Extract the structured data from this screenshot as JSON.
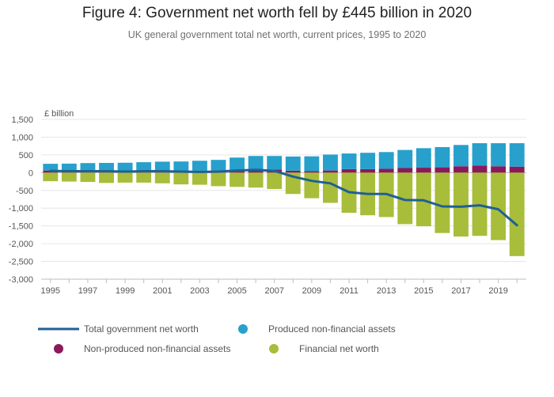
{
  "chart_data": {
    "type": "bar",
    "title": "Figure 4: Government net worth fell by £445 billion in 2020",
    "subtitle": "UK general government total net worth, current prices, 1995 to 2020",
    "ylabel": "£ billion",
    "xlabel": "",
    "ylim": [
      -3000,
      1500
    ],
    "yticks": [
      1500,
      1000,
      500,
      0,
      -500,
      -1000,
      -1500,
      -2000,
      -2500,
      -3000
    ],
    "ytick_labels": [
      "1,500",
      "1,000",
      "500",
      "0",
      "-500",
      "-1,000",
      "-1,500",
      "-2,000",
      "-2,500",
      "-3,000"
    ],
    "xtick_labels": [
      "1995",
      "1997",
      "1999",
      "2001",
      "2003",
      "2005",
      "2007",
      "2009",
      "2011",
      "2013",
      "2015",
      "2017",
      "2019"
    ],
    "stacked": true,
    "grid": true,
    "legend_position": "bottom",
    "categories": [
      "1995",
      "1996",
      "1997",
      "1998",
      "1999",
      "2000",
      "2001",
      "2002",
      "2003",
      "2004",
      "2005",
      "2006",
      "2007",
      "2008",
      "2009",
      "2010",
      "2011",
      "2012",
      "2013",
      "2014",
      "2015",
      "2016",
      "2017",
      "2018",
      "2019",
      "2020"
    ],
    "series": [
      {
        "name": "Non-produced non-financial assets",
        "kind": "bar",
        "color": "#8b1a5b",
        "values": [
          60,
          55,
          60,
          55,
          50,
          55,
          60,
          55,
          55,
          60,
          65,
          80,
          90,
          55,
          40,
          60,
          100,
          100,
          110,
          130,
          140,
          150,
          180,
          200,
          180,
          170
        ]
      },
      {
        "name": "Produced non-financial assets",
        "kind": "bar",
        "color": "#27a0cc",
        "values": [
          190,
          200,
          210,
          220,
          230,
          240,
          250,
          260,
          280,
          300,
          360,
          390,
          380,
          400,
          420,
          450,
          440,
          460,
          470,
          510,
          550,
          570,
          600,
          630,
          650,
          660
        ]
      },
      {
        "name": "Financial net worth",
        "kind": "bar",
        "color": "#a8bd3a",
        "values": [
          -240,
          -250,
          -260,
          -290,
          -280,
          -280,
          -300,
          -330,
          -340,
          -380,
          -400,
          -420,
          -460,
          -600,
          -720,
          -850,
          -1130,
          -1200,
          -1250,
          -1450,
          -1510,
          -1700,
          -1800,
          -1780,
          -1900,
          -2350
        ]
      },
      {
        "name": "Total government net worth",
        "kind": "line",
        "color": "#206095",
        "values": [
          50,
          40,
          40,
          40,
          30,
          40,
          40,
          30,
          20,
          30,
          60,
          80,
          50,
          -110,
          -230,
          -300,
          -550,
          -600,
          -600,
          -770,
          -780,
          -950,
          -960,
          -920,
          -1030,
          -1480
        ]
      }
    ],
    "legend": [
      {
        "label": "Total government net worth",
        "series": 3
      },
      {
        "label": "Produced non-financial assets",
        "series": 1
      },
      {
        "label": "Non-produced non-financial assets",
        "series": 0
      },
      {
        "label": "Financial net worth",
        "series": 2
      }
    ]
  }
}
